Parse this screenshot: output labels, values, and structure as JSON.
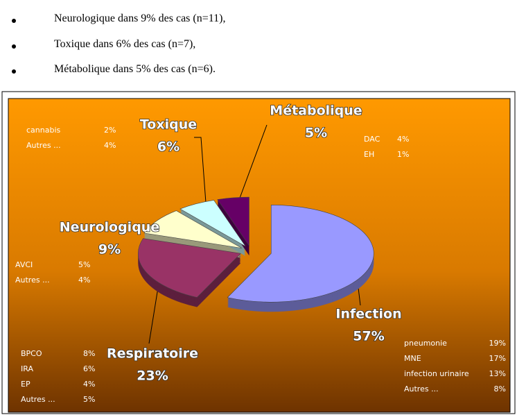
{
  "bullets": [
    "Neurologique dans 9% des cas (n=11),",
    "Toxique dans 6% des cas (n=7),",
    "Métabolique dans 5% des cas (n=6)."
  ],
  "chart_data": {
    "type": "pie",
    "categories": [
      "Infection",
      "Respiratoire",
      "Neurologique",
      "Toxique",
      "Métabolique"
    ],
    "values": [
      57,
      23,
      9,
      6,
      5
    ],
    "value_labels": [
      "57%",
      "23%",
      "9%",
      "6%",
      "5%"
    ],
    "colors": [
      "#9999ff",
      "#993366",
      "#ffffcc",
      "#ccffff",
      "#660066"
    ],
    "notes": [
      {
        "category": "Toxique",
        "items": [
          {
            "name": "cannabis",
            "share": "2%"
          },
          {
            "name": "Autres ...",
            "share": "4%"
          }
        ]
      },
      {
        "category": "Métabolique",
        "items": [
          {
            "name": "DAC",
            "share": "4%"
          },
          {
            "name": "EH",
            "share": "1%"
          }
        ]
      },
      {
        "category": "Neurologique",
        "items": [
          {
            "name": "AVCI",
            "share": "5%"
          },
          {
            "name": "Autres ...",
            "share": "4%"
          }
        ]
      },
      {
        "category": "Infection",
        "items": [
          {
            "name": "pneumonie",
            "share": "19%"
          },
          {
            "name": "MNE",
            "share": "17%"
          },
          {
            "name": "infection urinaire",
            "share": "13%"
          },
          {
            "name": "Autres ...",
            "share": "8%"
          }
        ]
      },
      {
        "category": "Respiratoire",
        "items": [
          {
            "name": "BPCO",
            "share": "8%"
          },
          {
            "name": "IRA",
            "share": "6%"
          },
          {
            "name": "EP",
            "share": "4%"
          },
          {
            "name": "Autres ...",
            "share": "5%"
          }
        ]
      }
    ]
  }
}
